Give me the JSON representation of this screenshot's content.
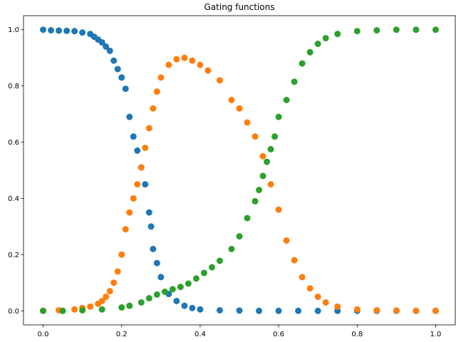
{
  "chart_data": {
    "type": "scatter",
    "title": "Gating functions",
    "xlabel": "",
    "ylabel": "",
    "xlim": [
      -0.05,
      1.05
    ],
    "ylim": [
      -0.05,
      1.05
    ],
    "grid": false,
    "x_ticks": [
      0.0,
      0.2,
      0.4,
      0.6,
      0.8,
      1.0
    ],
    "x_tick_labels": [
      "0.0",
      "0.2",
      "0.4",
      "0.6",
      "0.8",
      "1.0"
    ],
    "y_ticks": [
      0.0,
      0.2,
      0.4,
      0.6,
      0.8,
      1.0
    ],
    "y_tick_labels": [
      "0.0",
      "0.2",
      "0.4",
      "0.6",
      "0.8",
      "1.0"
    ],
    "series": [
      {
        "color": "#1f77b4",
        "points": [
          [
            0.0,
            1.0
          ],
          [
            0.02,
            0.998
          ],
          [
            0.04,
            0.997
          ],
          [
            0.06,
            0.996
          ],
          [
            0.08,
            0.995
          ],
          [
            0.1,
            0.99
          ],
          [
            0.12,
            0.985
          ],
          [
            0.13,
            0.975
          ],
          [
            0.14,
            0.965
          ],
          [
            0.15,
            0.955
          ],
          [
            0.16,
            0.94
          ],
          [
            0.17,
            0.925
          ],
          [
            0.18,
            0.89
          ],
          [
            0.19,
            0.86
          ],
          [
            0.2,
            0.83
          ],
          [
            0.21,
            0.79
          ],
          [
            0.22,
            0.69
          ],
          [
            0.23,
            0.62
          ],
          [
            0.24,
            0.57
          ],
          [
            0.25,
            0.51
          ],
          [
            0.26,
            0.45
          ],
          [
            0.27,
            0.35
          ],
          [
            0.275,
            0.3
          ],
          [
            0.28,
            0.22
          ],
          [
            0.29,
            0.17
          ],
          [
            0.3,
            0.12
          ],
          [
            0.32,
            0.06
          ],
          [
            0.34,
            0.035
          ],
          [
            0.36,
            0.018
          ],
          [
            0.38,
            0.01
          ],
          [
            0.4,
            0.005
          ],
          [
            0.45,
            0.002
          ],
          [
            0.5,
            0.001
          ],
          [
            0.55,
            0.0
          ],
          [
            0.6,
            0.0
          ],
          [
            0.65,
            0.0
          ],
          [
            0.7,
            0.0
          ],
          [
            0.75,
            0.0
          ],
          [
            0.8,
            0.0
          ],
          [
            0.85,
            0.0
          ],
          [
            0.9,
            0.0
          ],
          [
            0.95,
            0.0
          ],
          [
            1.0,
            0.0
          ]
        ]
      },
      {
        "color": "#ff7f0e",
        "points": [
          [
            0.0,
            0.0
          ],
          [
            0.04,
            0.002
          ],
          [
            0.08,
            0.005
          ],
          [
            0.1,
            0.01
          ],
          [
            0.12,
            0.015
          ],
          [
            0.14,
            0.025
          ],
          [
            0.15,
            0.035
          ],
          [
            0.16,
            0.05
          ],
          [
            0.17,
            0.07
          ],
          [
            0.18,
            0.1
          ],
          [
            0.19,
            0.14
          ],
          [
            0.2,
            0.2
          ],
          [
            0.21,
            0.29
          ],
          [
            0.22,
            0.35
          ],
          [
            0.23,
            0.4
          ],
          [
            0.24,
            0.45
          ],
          [
            0.25,
            0.51
          ],
          [
            0.26,
            0.58
          ],
          [
            0.27,
            0.65
          ],
          [
            0.28,
            0.72
          ],
          [
            0.29,
            0.78
          ],
          [
            0.3,
            0.83
          ],
          [
            0.32,
            0.875
          ],
          [
            0.34,
            0.895
          ],
          [
            0.36,
            0.9
          ],
          [
            0.38,
            0.89
          ],
          [
            0.4,
            0.875
          ],
          [
            0.42,
            0.855
          ],
          [
            0.45,
            0.82
          ],
          [
            0.48,
            0.75
          ],
          [
            0.5,
            0.72
          ],
          [
            0.52,
            0.67
          ],
          [
            0.54,
            0.62
          ],
          [
            0.56,
            0.55
          ],
          [
            0.58,
            0.45
          ],
          [
            0.6,
            0.36
          ],
          [
            0.62,
            0.25
          ],
          [
            0.64,
            0.18
          ],
          [
            0.66,
            0.12
          ],
          [
            0.68,
            0.08
          ],
          [
            0.7,
            0.05
          ],
          [
            0.72,
            0.03
          ],
          [
            0.75,
            0.015
          ],
          [
            0.8,
            0.005
          ],
          [
            0.85,
            0.002
          ],
          [
            0.9,
            0.001
          ],
          [
            0.95,
            0.0
          ],
          [
            1.0,
            0.0
          ]
        ]
      },
      {
        "color": "#2ca02c",
        "points": [
          [
            0.0,
            0.0
          ],
          [
            0.05,
            0.0
          ],
          [
            0.1,
            0.002
          ],
          [
            0.15,
            0.005
          ],
          [
            0.2,
            0.012
          ],
          [
            0.22,
            0.018
          ],
          [
            0.25,
            0.03
          ],
          [
            0.27,
            0.045
          ],
          [
            0.29,
            0.058
          ],
          [
            0.31,
            0.068
          ],
          [
            0.33,
            0.077
          ],
          [
            0.35,
            0.085
          ],
          [
            0.37,
            0.097
          ],
          [
            0.39,
            0.115
          ],
          [
            0.41,
            0.135
          ],
          [
            0.43,
            0.155
          ],
          [
            0.45,
            0.178
          ],
          [
            0.48,
            0.22
          ],
          [
            0.5,
            0.265
          ],
          [
            0.52,
            0.33
          ],
          [
            0.54,
            0.39
          ],
          [
            0.55,
            0.43
          ],
          [
            0.56,
            0.48
          ],
          [
            0.57,
            0.53
          ],
          [
            0.58,
            0.575
          ],
          [
            0.59,
            0.62
          ],
          [
            0.6,
            0.69
          ],
          [
            0.62,
            0.75
          ],
          [
            0.64,
            0.815
          ],
          [
            0.66,
            0.88
          ],
          [
            0.68,
            0.92
          ],
          [
            0.7,
            0.95
          ],
          [
            0.72,
            0.97
          ],
          [
            0.75,
            0.985
          ],
          [
            0.8,
            0.995
          ],
          [
            0.85,
            0.998
          ],
          [
            0.9,
            1.0
          ],
          [
            0.95,
            1.0
          ],
          [
            1.0,
            1.0
          ]
        ]
      }
    ]
  }
}
